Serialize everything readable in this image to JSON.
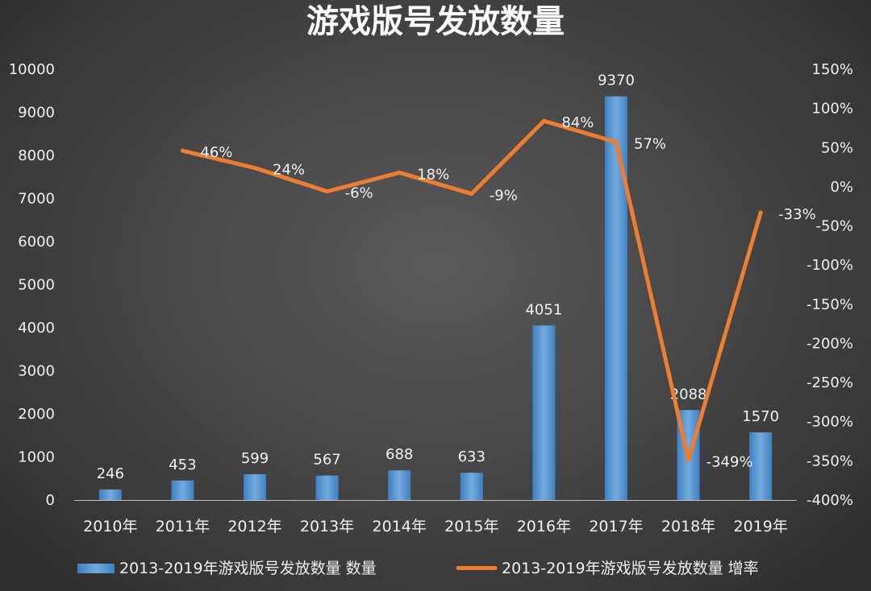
{
  "chart_data": {
    "type": "bar+line",
    "title": "游戏版号发放数量",
    "categories": [
      "2010年",
      "2011年",
      "2012年",
      "2013年",
      "2014年",
      "2015年",
      "2016年",
      "2017年",
      "2018年",
      "2019年"
    ],
    "series": [
      {
        "name": "2013-2019年游戏版号发放数量 数量",
        "type": "bar",
        "axis": "left",
        "color": "#5b9bd5",
        "values": [
          246,
          453,
          599,
          567,
          688,
          633,
          4051,
          9370,
          2088,
          1570
        ],
        "labels": [
          "246",
          "453",
          "599",
          "567",
          "688",
          "633",
          "4051",
          "9370",
          "2088",
          "1570"
        ]
      },
      {
        "name": "2013-2019年游戏版号发放数量 增率",
        "type": "line",
        "axis": "right",
        "color": "#ed7d31",
        "values": [
          null,
          46,
          24,
          -6,
          18,
          -9,
          84,
          57,
          -349,
          -33
        ],
        "labels": [
          "",
          "46%",
          "24%",
          "-6%",
          "18%",
          "-9%",
          "84%",
          "57%",
          "-349%",
          "-33%"
        ]
      }
    ],
    "y_left": {
      "min": 0,
      "max": 10000,
      "ticks": [
        0,
        1000,
        2000,
        3000,
        4000,
        5000,
        6000,
        7000,
        8000,
        9000,
        10000
      ],
      "tick_labels": [
        "0",
        "1000",
        "2000",
        "3000",
        "4000",
        "5000",
        "6000",
        "7000",
        "8000",
        "9000",
        "10000"
      ]
    },
    "y_right": {
      "min": -400,
      "max": 150,
      "ticks": [
        150,
        100,
        50,
        0,
        -50,
        -100,
        -150,
        -200,
        -250,
        -300,
        -350,
        -400
      ],
      "tick_labels": [
        "150%",
        "100%",
        "50%",
        "0%",
        "-50%",
        "-100%",
        "-150%",
        "-200%",
        "-250%",
        "-300%",
        "-350%",
        "-400%"
      ]
    },
    "grid": false,
    "legend_position": "bottom"
  }
}
